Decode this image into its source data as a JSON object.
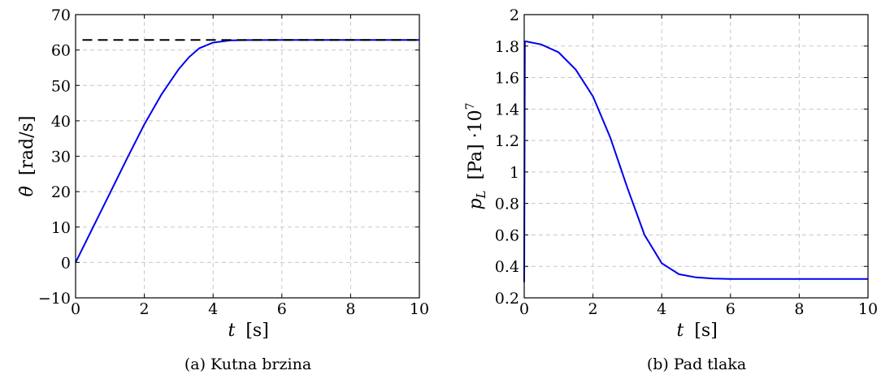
{
  "chart_data": [
    {
      "type": "line",
      "caption": "(a) Kutna brzina",
      "xlabel_symbol": "t",
      "xlabel_unit": "[s]",
      "ylabel_symbol": "θ̇",
      "ylabel_unit": "[rad/s]",
      "xlim": [
        0,
        10
      ],
      "ylim": [
        -10,
        70
      ],
      "xticks": [
        0,
        2,
        4,
        6,
        8,
        10
      ],
      "yticks": [
        -10,
        0,
        10,
        20,
        30,
        40,
        50,
        60,
        70
      ],
      "grid": true,
      "series": [
        {
          "color": "#0000ee",
          "style": "solid",
          "x": [
            0,
            0.5,
            1,
            1.5,
            2,
            2.5,
            3,
            3.3,
            3.6,
            4,
            4.5,
            5,
            6,
            7,
            8,
            9,
            10
          ],
          "y": [
            0,
            9.8,
            19.6,
            29.4,
            39,
            47.5,
            54.6,
            58,
            60.5,
            62.1,
            62.7,
            62.8,
            62.83,
            62.83,
            62.83,
            62.83,
            62.83
          ]
        },
        {
          "color": "#000000",
          "style": "dashed",
          "x": [
            0.2,
            10
          ],
          "y": [
            62.83,
            62.83
          ]
        }
      ]
    },
    {
      "type": "line",
      "caption": "(b) Pad tlaka",
      "xlabel_symbol": "t",
      "xlabel_unit": "[s]",
      "ylabel_symbol": "pL",
      "ylabel_unit": "[Pa] ·10",
      "ylabel_exponent": "7",
      "xlim": [
        0,
        10
      ],
      "ylim": [
        0.2,
        2
      ],
      "xticks": [
        0,
        2,
        4,
        6,
        8,
        10
      ],
      "yticks": [
        0.2,
        0.4,
        0.6,
        0.8,
        1,
        1.2,
        1.4,
        1.6,
        1.8,
        2
      ],
      "grid": true,
      "series": [
        {
          "color": "#0000ee",
          "style": "solid",
          "x": [
            0,
            0.02,
            0.05,
            0.5,
            1,
            1.5,
            2,
            2.5,
            3,
            3.5,
            4,
            4.5,
            5,
            5.5,
            6,
            7,
            8,
            9,
            10
          ],
          "y": [
            0.3,
            1.83,
            1.83,
            1.81,
            1.76,
            1.65,
            1.48,
            1.22,
            0.9,
            0.6,
            0.42,
            0.35,
            0.33,
            0.322,
            0.32,
            0.32,
            0.32,
            0.32,
            0.32
          ]
        }
      ]
    }
  ]
}
